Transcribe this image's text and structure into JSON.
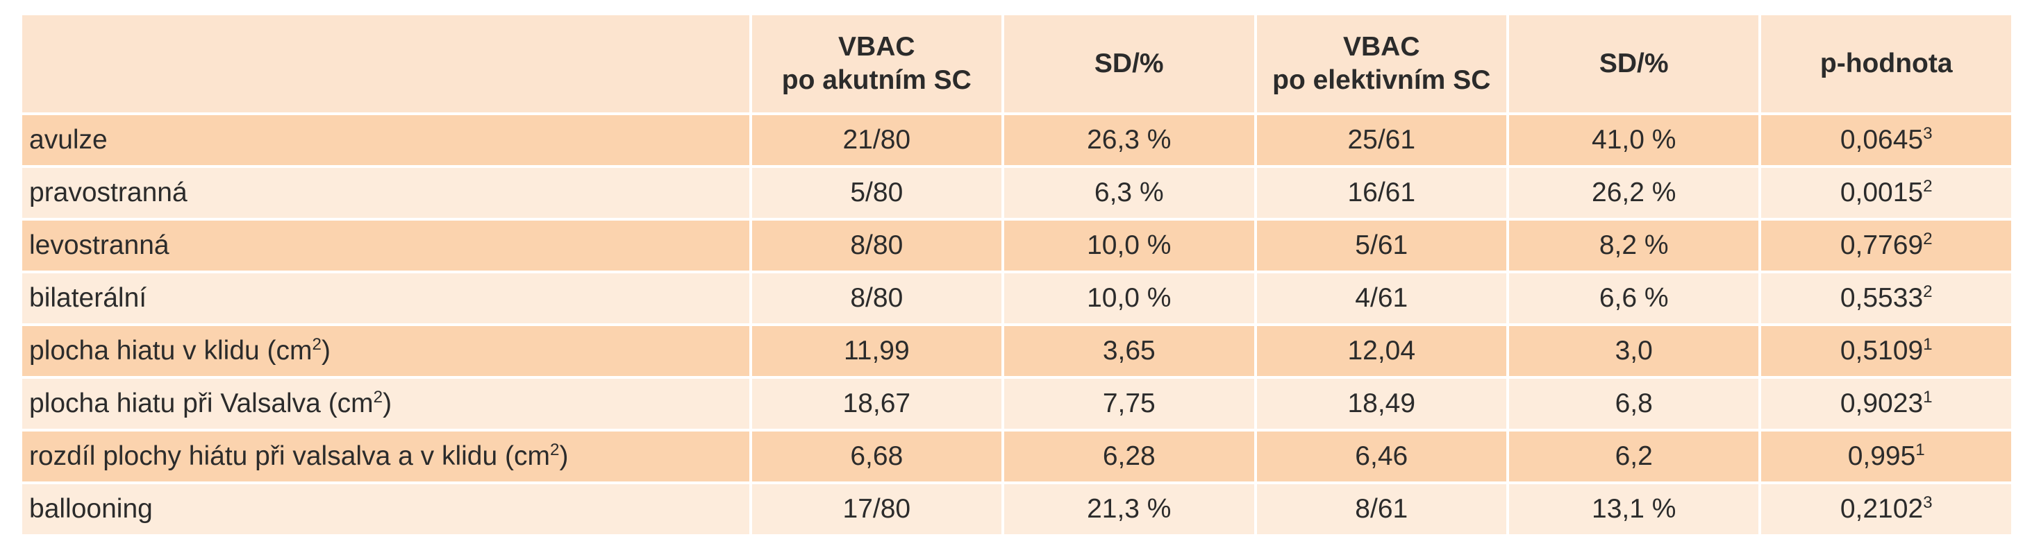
{
  "header": {
    "col1_line1": "VBAC",
    "col1_line2": "po akutním SC",
    "col2": "SD/%",
    "col3_line1": "VBAC",
    "col3_line2": "po elektivním SC",
    "col4": "SD/%",
    "col5": "p-hodnota"
  },
  "rows": [
    {
      "label": "avulze",
      "unit": "",
      "v1": "21/80",
      "sd1": "26,3 %",
      "v2": "25/61",
      "sd2": "41,0 %",
      "p": "0,0645",
      "p_note": "3"
    },
    {
      "label": "pravostranná",
      "unit": "",
      "v1": "5/80",
      "sd1": "6,3 %",
      "v2": "16/61",
      "sd2": "26,2 %",
      "p": "0,0015",
      "p_note": "2"
    },
    {
      "label": "levostranná",
      "unit": "",
      "v1": "8/80",
      "sd1": "10,0 %",
      "v2": "5/61",
      "sd2": "8,2 %",
      "p": "0,7769",
      "p_note": "2"
    },
    {
      "label": "bilaterální",
      "unit": "",
      "v1": "8/80",
      "sd1": "10,0 %",
      "v2": "4/61",
      "sd2": "6,6 %",
      "p": "0,5533",
      "p_note": "2"
    },
    {
      "label": "plocha hiatu v klidu (cm",
      "unit_sup": "2",
      "unit_close": ")",
      "v1": "11,99",
      "sd1": "3,65",
      "v2": "12,04",
      "sd2": "3,0",
      "p": "0,5109",
      "p_note": "1"
    },
    {
      "label": "plocha hiatu při Valsalva  (cm",
      "unit_sup": "2",
      "unit_close": ")",
      "v1": "18,67",
      "sd1": "7,75",
      "v2": "18,49",
      "sd2": "6,8",
      "p": "0,9023",
      "p_note": "1"
    },
    {
      "label": "rozdíl plochy hiátu při valsalva a v klidu (cm",
      "unit_sup": "2",
      "unit_close": ")",
      "v1": "6,68",
      "sd1": "6,28",
      "v2": "6,46",
      "sd2": "6,2",
      "p": "0,995",
      "p_note": "1"
    },
    {
      "label": "ballooning",
      "unit": "",
      "v1": "17/80",
      "sd1": "21,3 %",
      "v2": "8/61",
      "sd2": "13,1 %",
      "p": "0,2102",
      "p_note": "3"
    }
  ],
  "colors": {
    "header_bg": "#fce4cf",
    "row_odd_bg": "#fbd3ae",
    "row_even_bg": "#fdecdc",
    "text": "#2b2b2b"
  }
}
